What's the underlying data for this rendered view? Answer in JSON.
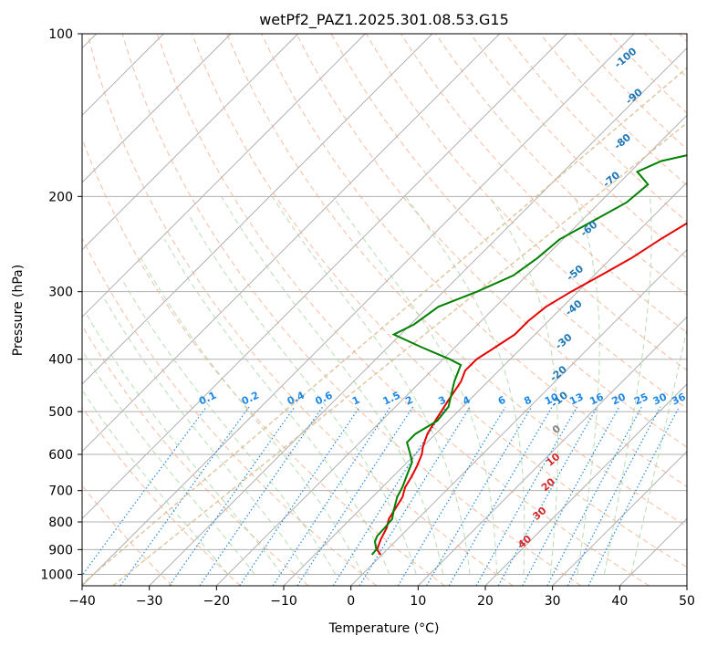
{
  "chart_data": {
    "type": "line",
    "diagram": "skew-t log-p",
    "title": "wetPf2_PAZ1.2025.301.08.53.G15",
    "xlabel": "Temperature (°C)",
    "ylabel": "Pressure (hPa)",
    "xlim": [
      -40,
      50
    ],
    "ylim": [
      1050,
      100
    ],
    "x_ticks": [
      "−40",
      "−30",
      "−20",
      "−10",
      "0",
      "10",
      "20",
      "30",
      "40",
      "50"
    ],
    "x_tick_values": [
      -40,
      -30,
      -20,
      -10,
      0,
      10,
      20,
      30,
      40,
      50
    ],
    "y_ticks": [
      "100",
      "200",
      "300",
      "400",
      "500",
      "600",
      "700",
      "800",
      "900",
      "1000"
    ],
    "y_tick_values": [
      100,
      200,
      300,
      400,
      500,
      600,
      700,
      800,
      900,
      1000
    ],
    "grid": true,
    "series": [
      {
        "name": "Temperature",
        "color": "#e60000",
        "points": [
          [
            920,
            -0.2
          ],
          [
            900,
            -1.5
          ],
          [
            860,
            -2.5
          ],
          [
            820,
            -3.3
          ],
          [
            790,
            -4.3
          ],
          [
            760,
            -4.8
          ],
          [
            720,
            -5.5
          ],
          [
            690,
            -6.6
          ],
          [
            660,
            -7.2
          ],
          [
            630,
            -8.0
          ],
          [
            600,
            -9.0
          ],
          [
            580,
            -10.0
          ],
          [
            550,
            -11.2
          ],
          [
            520,
            -12.0
          ],
          [
            480,
            -13.0
          ],
          [
            440,
            -14.0
          ],
          [
            420,
            -15.0
          ],
          [
            400,
            -15.0
          ],
          [
            380,
            -14.0
          ],
          [
            360,
            -13.0
          ],
          [
            340,
            -13.0
          ],
          [
            320,
            -12.5
          ],
          [
            300,
            -11.0
          ],
          [
            280,
            -9.0
          ],
          [
            260,
            -7.0
          ],
          [
            240,
            -5.5
          ],
          [
            220,
            -3.5
          ],
          [
            200,
            -1.2
          ],
          [
            185,
            0.0
          ],
          [
            170,
            1.0
          ],
          [
            158,
            1.5
          ],
          [
            150,
            2.8
          ],
          [
            140,
            4.5
          ],
          [
            130,
            6.5
          ],
          [
            120,
            8.5
          ],
          [
            110,
            10.5
          ],
          [
            100,
            12.5
          ]
        ]
      },
      {
        "name": "Dewpoint",
        "color": "#008000",
        "points": [
          [
            920,
            -1.5
          ],
          [
            900,
            -1.6
          ],
          [
            870,
            -3.0
          ],
          [
            850,
            -3.5
          ],
          [
            820,
            -3.6
          ],
          [
            790,
            -3.8
          ],
          [
            760,
            -4.9
          ],
          [
            720,
            -6.3
          ],
          [
            690,
            -7.0
          ],
          [
            650,
            -8.3
          ],
          [
            620,
            -9.3
          ],
          [
            600,
            -10.7
          ],
          [
            570,
            -13.0
          ],
          [
            550,
            -13.0
          ],
          [
            520,
            -11.7
          ],
          [
            490,
            -12.1
          ],
          [
            440,
            -15.0
          ],
          [
            410,
            -16.5
          ],
          [
            400,
            -19.0
          ],
          [
            380,
            -25.0
          ],
          [
            360,
            -31.0
          ],
          [
            345,
            -29.5
          ],
          [
            320,
            -28.5
          ],
          [
            300,
            -25.0
          ],
          [
            280,
            -22.0
          ],
          [
            260,
            -21.0
          ],
          [
            240,
            -20.5
          ],
          [
            220,
            -18.0
          ],
          [
            205,
            -16.0
          ],
          [
            190,
            -15.5
          ],
          [
            180,
            -19.0
          ],
          [
            172,
            -17.0
          ],
          [
            165,
            -12.0
          ],
          [
            155,
            -10.0
          ],
          [
            145,
            -9.5
          ],
          [
            135,
            -11.0
          ],
          [
            128,
            -11.0
          ],
          [
            115,
            -8.5
          ],
          [
            105,
            -6.0
          ],
          [
            100,
            -5.0
          ]
        ]
      }
    ],
    "mixing_ratio_labels": [
      "0.1",
      "0.2",
      "0.4",
      "0.6",
      "1",
      "1.5",
      "2",
      "3",
      "4",
      "6",
      "8",
      "10",
      "13",
      "16",
      "20",
      "25",
      "30",
      "36"
    ],
    "mixing_ratio_values": [
      0.1,
      0.2,
      0.4,
      0.6,
      1,
      1.5,
      2,
      3,
      4,
      6,
      8,
      10,
      13,
      16,
      20,
      25,
      30,
      36
    ],
    "mixing_ratio_label_pressure": 490,
    "dry_adiabat_labels": [
      "-100",
      "-90",
      "-80",
      "-70",
      "-60",
      "-50",
      "-40",
      "-30",
      "-20",
      "-10",
      "0",
      "10",
      "20",
      "30",
      "40"
    ],
    "dry_adiabat_label_points": [
      [
        112,
        -37
      ],
      [
        132,
        -30
      ],
      [
        160,
        -25
      ],
      [
        188,
        -21
      ],
      [
        232,
        -17
      ],
      [
        280,
        -12.5
      ],
      [
        325,
        -7.5
      ],
      [
        375,
        -4
      ],
      [
        430,
        0
      ],
      [
        480,
        4
      ],
      [
        545,
        8
      ],
      [
        620,
        12
      ],
      [
        690,
        15
      ],
      [
        780,
        18
      ],
      [
        880,
        20
      ]
    ],
    "dry_adiabat_label_colors": [
      "#1f77b4",
      "#1f77b4",
      "#1f77b4",
      "#1f77b4",
      "#1f77b4",
      "#1f77b4",
      "#1f77b4",
      "#1f77b4",
      "#1f77b4",
      "#1f77b4",
      "#808080",
      "#d62728",
      "#d62728",
      "#d62728",
      "#d62728"
    ],
    "colors": {
      "isotherm": "#b0b0b0",
      "isobar": "#b0b0b0",
      "dry_adiabat": "#f4a582",
      "moist_adiabat": "#a6d5a0",
      "mixing_ratio": "#1e88e5",
      "lcl_curve": "#d8b98a"
    }
  }
}
